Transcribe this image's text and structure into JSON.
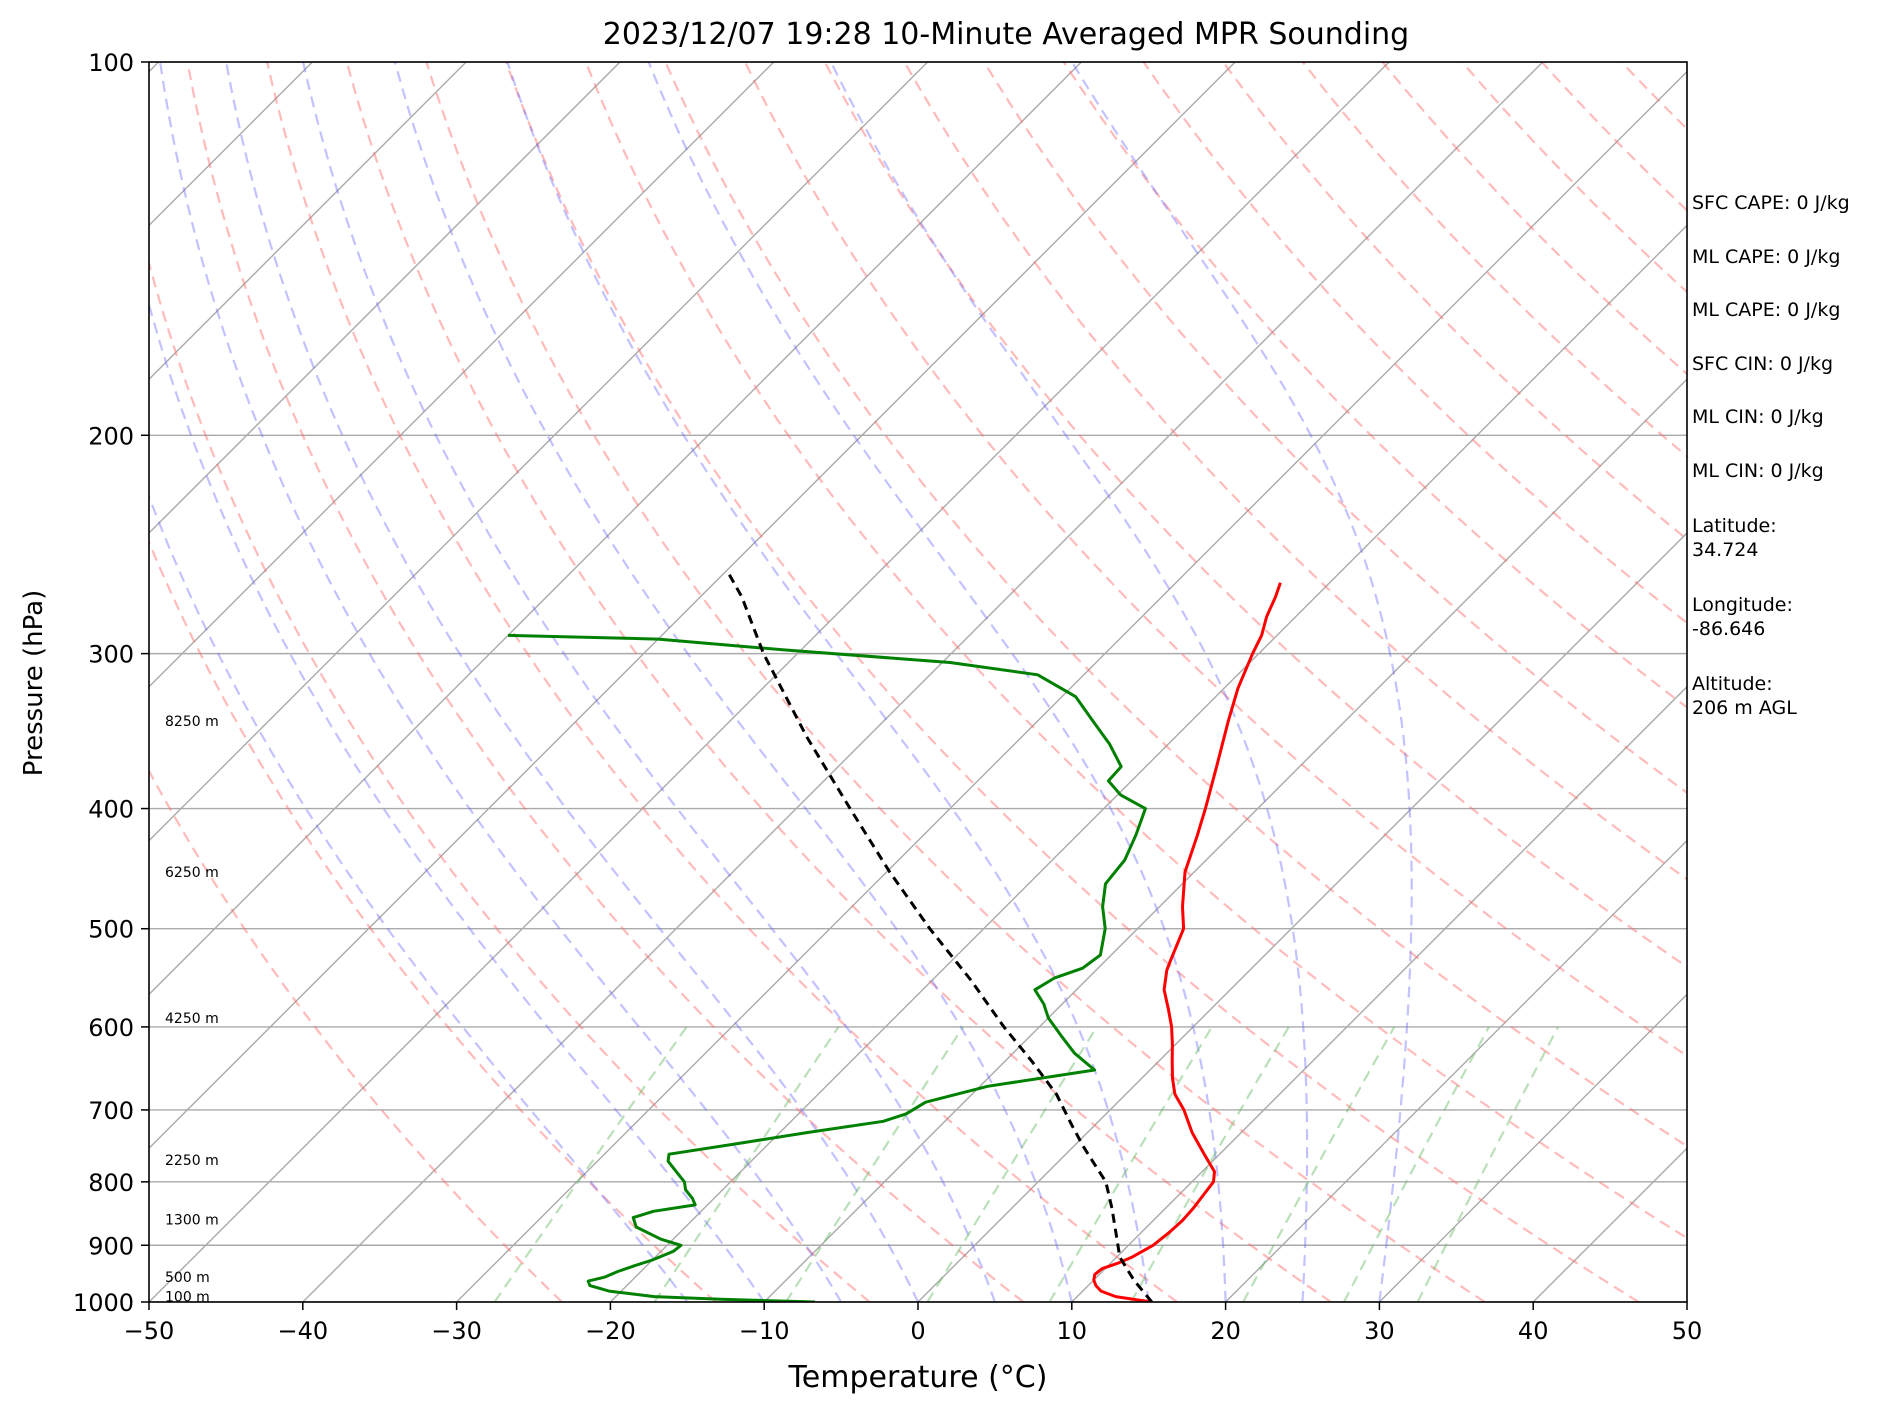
{
  "chart_data": {
    "type": "skew-t",
    "title": "2023/12/07 19:28 10-Minute Averaged MPR Sounding",
    "xlabel": "Temperature (°C)",
    "ylabel": "Pressure (hPa)",
    "xlim": [
      -50,
      50
    ],
    "ylim": [
      1000,
      100
    ],
    "y_scale": "log",
    "x_ticks": [
      "−50",
      "−40",
      "−30",
      "−20",
      "−10",
      "0",
      "10",
      "20",
      "30",
      "40",
      "50"
    ],
    "y_ticks": [
      "100",
      "200",
      "300",
      "400",
      "500",
      "600",
      "700",
      "800",
      "900",
      "1000"
    ],
    "height_labels": [
      {
        "p": 990,
        "text": "100 m"
      },
      {
        "p": 955,
        "text": "500 m"
      },
      {
        "p": 858,
        "text": "1300 m"
      },
      {
        "p": 768,
        "text": "2250 m"
      },
      {
        "p": 590,
        "text": "4250 m"
      },
      {
        "p": 450,
        "text": "6250 m"
      },
      {
        "p": 340,
        "text": "8250 m"
      }
    ],
    "series": [
      {
        "kind": "temperature",
        "color": "#ff0000",
        "points": [
          [
            1000,
            15.2
          ],
          [
            990,
            12.5
          ],
          [
            980,
            11.2
          ],
          [
            970,
            10.5
          ],
          [
            960,
            10.0
          ],
          [
            950,
            9.7
          ],
          [
            940,
            9.8
          ],
          [
            930,
            10.5
          ],
          [
            920,
            11.0
          ],
          [
            910,
            11.3
          ],
          [
            900,
            11.6
          ],
          [
            880,
            11.8
          ],
          [
            860,
            11.9
          ],
          [
            840,
            11.8
          ],
          [
            820,
            11.6
          ],
          [
            800,
            11.4
          ],
          [
            785,
            10.8
          ],
          [
            760,
            9.0
          ],
          [
            730,
            6.8
          ],
          [
            700,
            4.8
          ],
          [
            680,
            3.2
          ],
          [
            660,
            2.0
          ],
          [
            640,
            0.9
          ],
          [
            620,
            -0.2
          ],
          [
            600,
            -1.4
          ],
          [
            580,
            -2.8
          ],
          [
            560,
            -4.3
          ],
          [
            540,
            -5.4
          ],
          [
            530,
            -5.8
          ],
          [
            500,
            -7.0
          ],
          [
            480,
            -8.5
          ],
          [
            450,
            -10.6
          ],
          [
            420,
            -12.2
          ],
          [
            400,
            -13.4
          ],
          [
            370,
            -15.4
          ],
          [
            340,
            -17.6
          ],
          [
            320,
            -19.1
          ],
          [
            300,
            -20.4
          ],
          [
            290,
            -21.0
          ],
          [
            280,
            -21.9
          ],
          [
            270,
            -22.6
          ],
          [
            263,
            -23.2
          ]
        ]
      },
      {
        "kind": "dewpoint",
        "color": "#008000",
        "points": [
          [
            1000,
            -6.7
          ],
          [
            995,
            -13.0
          ],
          [
            990,
            -17.5
          ],
          [
            980,
            -20.8
          ],
          [
            970,
            -22.4
          ],
          [
            962,
            -22.8
          ],
          [
            955,
            -22.0
          ],
          [
            945,
            -21.5
          ],
          [
            935,
            -20.8
          ],
          [
            925,
            -20.0
          ],
          [
            910,
            -19.2
          ],
          [
            900,
            -19.1
          ],
          [
            890,
            -20.8
          ],
          [
            870,
            -23.2
          ],
          [
            855,
            -24.0
          ],
          [
            845,
            -23.1
          ],
          [
            835,
            -20.8
          ],
          [
            825,
            -21.4
          ],
          [
            812,
            -22.4
          ],
          [
            800,
            -23.0
          ],
          [
            785,
            -24.2
          ],
          [
            770,
            -25.4
          ],
          [
            760,
            -25.8
          ],
          [
            745,
            -22.0
          ],
          [
            730,
            -18.2
          ],
          [
            715,
            -14.0
          ],
          [
            705,
            -13.0
          ],
          [
            690,
            -12.5
          ],
          [
            670,
            -9.5
          ],
          [
            650,
            -3.6
          ],
          [
            630,
            -6.0
          ],
          [
            610,
            -8.0
          ],
          [
            590,
            -10.0
          ],
          [
            575,
            -11.2
          ],
          [
            560,
            -12.7
          ],
          [
            548,
            -12.2
          ],
          [
            538,
            -11.0
          ],
          [
            525,
            -10.7
          ],
          [
            500,
            -12.1
          ],
          [
            480,
            -13.7
          ],
          [
            460,
            -15.0
          ],
          [
            440,
            -15.3
          ],
          [
            420,
            -16.2
          ],
          [
            400,
            -17.3
          ],
          [
            390,
            -19.8
          ],
          [
            380,
            -21.5
          ],
          [
            370,
            -21.6
          ],
          [
            355,
            -23.8
          ],
          [
            340,
            -26.4
          ],
          [
            325,
            -29.1
          ],
          [
            312,
            -33.0
          ],
          [
            305,
            -39.5
          ],
          [
            298,
            -51.0
          ],
          [
            292,
            -60.0
          ],
          [
            290,
            -70.0
          ]
        ]
      },
      {
        "kind": "parcel",
        "color": "#000000",
        "points": [
          [
            1000,
            15.2
          ],
          [
            960,
            12.6
          ],
          [
            920,
            10.2
          ],
          [
            880,
            8.4
          ],
          [
            840,
            6.5
          ],
          [
            800,
            4.4
          ],
          [
            770,
            2.2
          ],
          [
            750,
            0.7
          ],
          [
            720,
            -1.5
          ],
          [
            680,
            -4.5
          ],
          [
            640,
            -8.2
          ],
          [
            600,
            -12.3
          ],
          [
            550,
            -17.5
          ],
          [
            500,
            -23.5
          ],
          [
            450,
            -29.8
          ],
          [
            400,
            -36.5
          ],
          [
            350,
            -44.0
          ],
          [
            300,
            -52.2
          ],
          [
            270,
            -57.3
          ],
          [
            257,
            -60.0
          ]
        ]
      }
    ],
    "dry_adiabats_K": [
      250,
      260,
      270,
      280,
      290,
      300,
      310,
      320,
      330,
      340,
      350,
      360,
      370,
      380,
      390,
      400,
      410,
      420,
      430,
      440,
      450,
      460
    ],
    "moist_adiabats_C": [
      -15,
      -10,
      -5,
      0,
      5,
      10,
      15,
      20,
      25,
      30
    ],
    "mixing_ratios": [
      0.0004,
      0.001,
      0.002,
      0.004,
      0.007,
      0.01,
      0.016,
      0.024,
      0.032
    ],
    "colors": {
      "isotherm": "#aaaaaa",
      "dry_adiabat": "#ff6666",
      "moist_adiabat": "#6666ff",
      "mixing_ratio": "#66bb66"
    }
  },
  "info_panel": {
    "sfc_cape": "SFC CAPE: 0 J/kg",
    "ml_cape_1": "ML CAPE: 0 J/kg",
    "ml_cape_2": "ML CAPE: 0 J/kg",
    "sfc_cin": "SFC CIN: 0 J/kg",
    "ml_cin_1": "ML CIN: 0 J/kg",
    "ml_cin_2": "ML CIN: 0 J/kg",
    "latitude": "Latitude:\n34.724",
    "longitude": "Longitude:\n-86.646",
    "altitude": "Altitude:\n206 m AGL"
  }
}
